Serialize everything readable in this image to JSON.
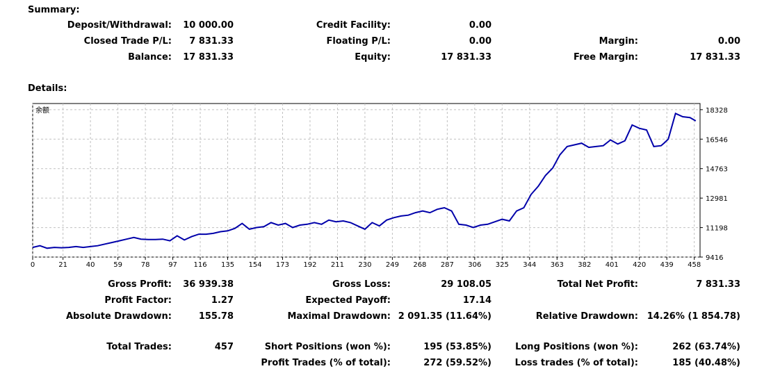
{
  "summary": {
    "heading": "Summary:",
    "deposit_label": "Deposit/Withdrawal:",
    "deposit_value": "10 000.00",
    "credit_label": "Credit Facility:",
    "credit_value": "0.00",
    "closed_label": "Closed Trade P/L:",
    "closed_value": "7 831.33",
    "floating_label": "Floating P/L:",
    "floating_value": "0.00",
    "margin_label": "Margin:",
    "margin_value": "0.00",
    "balance_label": "Balance:",
    "balance_value": "17 831.33",
    "equity_label": "Equity:",
    "equity_value": "17 831.33",
    "free_margin_label": "Free Margin:",
    "free_margin_value": "17 831.33"
  },
  "details": {
    "heading": "Details:"
  },
  "stats": {
    "gross_profit_label": "Gross Profit:",
    "gross_profit_value": "36 939.38",
    "gross_loss_label": "Gross Loss:",
    "gross_loss_value": "29 108.05",
    "net_profit_label": "Total Net Profit:",
    "net_profit_value": "7 831.33",
    "profit_factor_label": "Profit Factor:",
    "profit_factor_value": "1.27",
    "expected_payoff_label": "Expected Payoff:",
    "expected_payoff_value": "17.14",
    "abs_dd_label": "Absolute Drawdown:",
    "abs_dd_value": "155.78",
    "max_dd_label": "Maximal Drawdown:",
    "max_dd_value": "2 091.35 (11.64%)",
    "rel_dd_label": "Relative Drawdown:",
    "rel_dd_value": "14.26% (1 854.78)",
    "total_trades_label": "Total Trades:",
    "total_trades_value": "457",
    "short_label": "Short Positions (won %):",
    "short_value": "195 (53.85%)",
    "long_label": "Long Positions (won %):",
    "long_value": "262 (63.74%)",
    "profit_trades_label": "Profit Trades (% of total):",
    "profit_trades_value": "272 (59.52%)",
    "loss_trades_label": "Loss trades (% of total):",
    "loss_trades_value": "185 (40.48%)"
  },
  "colors": {
    "line": "#0000aa",
    "grid": "#c0c0c0",
    "axis": "#000000"
  },
  "chart_data": {
    "type": "line",
    "title": "余额",
    "xlabel": "",
    "ylabel": "",
    "xlim": [
      0,
      462
    ],
    "ylim": [
      9416,
      18700
    ],
    "x_ticks": [
      "0",
      "21",
      "40",
      "59",
      "78",
      "97",
      "116",
      "135",
      "154",
      "173",
      "192",
      "211",
      "230",
      "249",
      "268",
      "287",
      "306",
      "325",
      "344",
      "363",
      "382",
      "401",
      "420",
      "439",
      "458"
    ],
    "x_tick_values": [
      0,
      21,
      40,
      59,
      78,
      97,
      116,
      135,
      154,
      173,
      192,
      211,
      230,
      249,
      268,
      287,
      306,
      325,
      344,
      363,
      382,
      401,
      420,
      439,
      458
    ],
    "y_ticks": [
      "18328",
      "16546",
      "14763",
      "12981",
      "11198",
      "9416"
    ],
    "y_tick_values": [
      18328,
      16546,
      14763,
      12981,
      11198,
      9416
    ],
    "series": [
      {
        "name": "Balance",
        "x": [
          0,
          5,
          10,
          15,
          20,
          25,
          30,
          35,
          40,
          45,
          50,
          55,
          60,
          65,
          70,
          75,
          80,
          85,
          90,
          95,
          100,
          105,
          110,
          115,
          120,
          125,
          130,
          135,
          140,
          145,
          150,
          155,
          160,
          165,
          170,
          175,
          180,
          185,
          190,
          195,
          200,
          205,
          210,
          215,
          220,
          225,
          230,
          235,
          240,
          245,
          250,
          255,
          260,
          265,
          270,
          275,
          280,
          285,
          290,
          295,
          300,
          305,
          310,
          315,
          320,
          325,
          330,
          335,
          340,
          345,
          350,
          355,
          360,
          365,
          370,
          375,
          380,
          385,
          390,
          395,
          400,
          405,
          410,
          415,
          420,
          425,
          430,
          435,
          437,
          440,
          445,
          450,
          455,
          459
        ],
        "y": [
          10000,
          10100,
          9950,
          10000,
          9980,
          10000,
          10050,
          10000,
          10050,
          10100,
          10200,
          10300,
          10400,
          10500,
          10600,
          10500,
          10480,
          10480,
          10500,
          10400,
          10700,
          10450,
          10650,
          10800,
          10800,
          10850,
          10950,
          11000,
          11150,
          11450,
          11100,
          11200,
          11250,
          11500,
          11350,
          11450,
          11200,
          11350,
          11400,
          11500,
          11400,
          11650,
          11550,
          11600,
          11500,
          11300,
          11100,
          11500,
          11300,
          11650,
          11800,
          11900,
          11950,
          12100,
          12200,
          12100,
          12300,
          12400,
          12200,
          11400,
          11350,
          11200,
          11350,
          11400,
          11550,
          11700,
          11600,
          12200,
          12400,
          13200,
          13700,
          14350,
          14800,
          15600,
          16100,
          16200,
          16300,
          16050,
          16100,
          16150,
          16500,
          16250,
          16450,
          17400,
          17200,
          17100,
          16100,
          16150,
          16300,
          16550,
          18100,
          17900,
          17850,
          17650
        ]
      }
    ]
  }
}
